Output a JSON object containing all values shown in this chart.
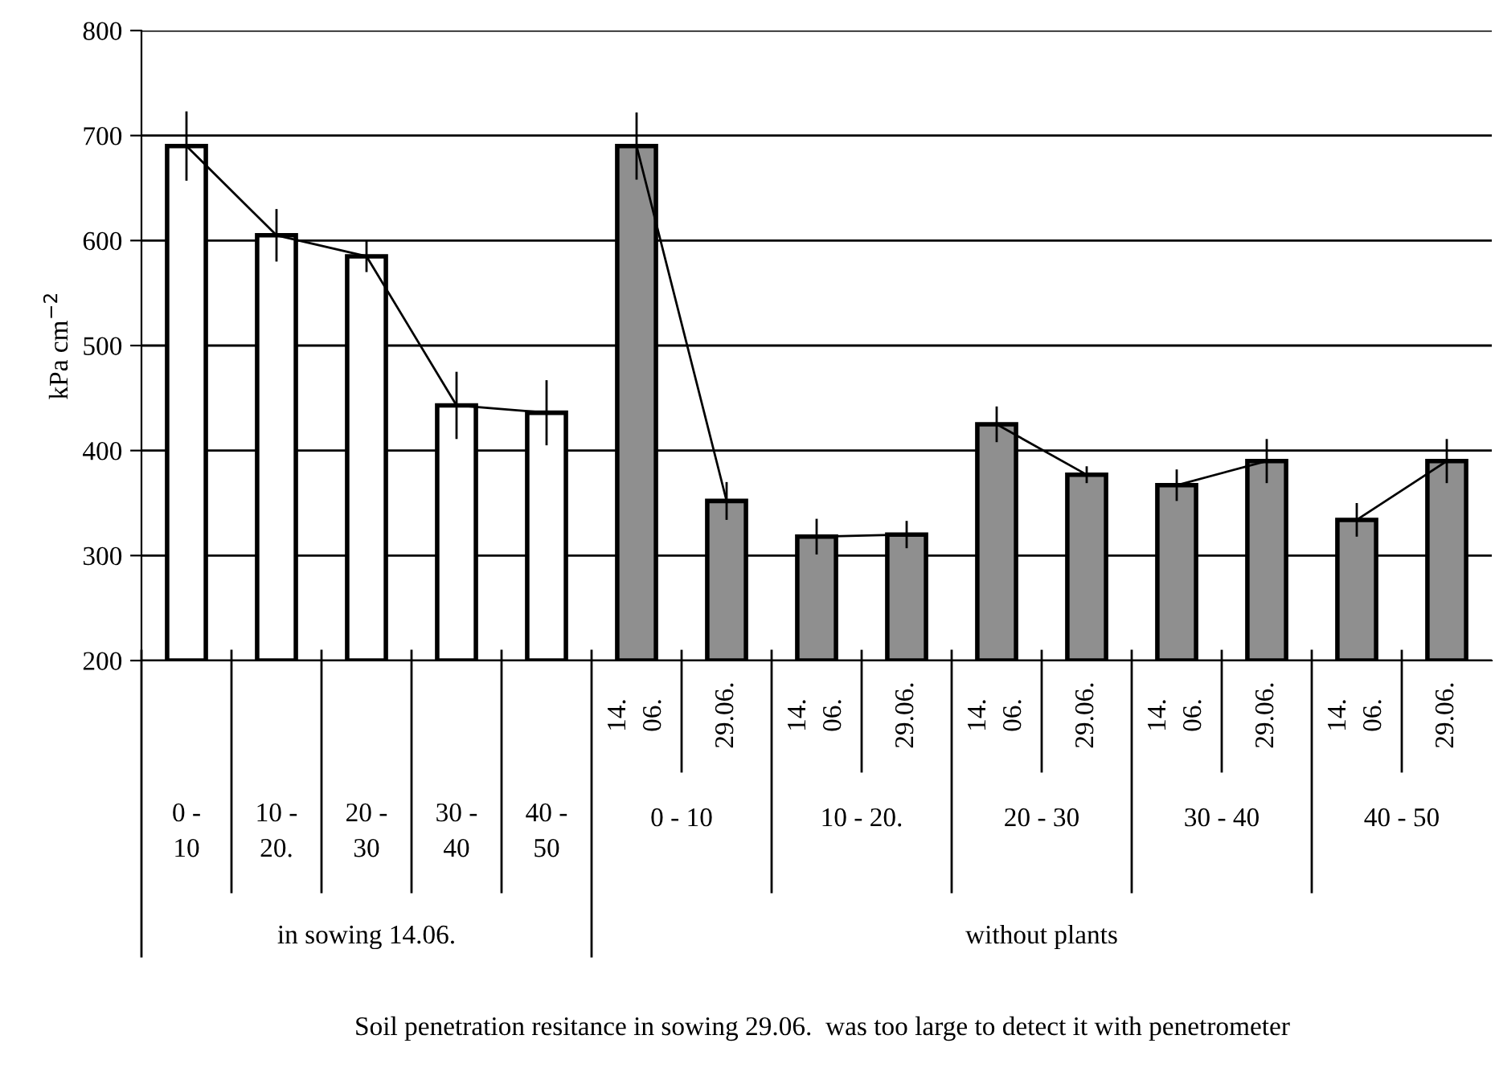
{
  "chart_data": [
    {
      "type": "bar",
      "ylabel": "kPa cm$^{−2}$",
      "categories": [
        "0 - 10",
        "10 - 20.",
        "20 - 30",
        "30 - 40",
        "40 - 50"
      ],
      "series": [
        {
          "type": "bar",
          "values": [
            690,
            605,
            585,
            443,
            436
          ],
          "errors": [
            33,
            25,
            15,
            32,
            31
          ],
          "color": "#ffffff"
        },
        {
          "type": "line",
          "color": "#000000",
          "values": [
            690,
            605,
            585,
            443,
            436
          ]
        }
      ],
      "ylim": [
        200,
        800
      ],
      "yticks": [
        200,
        300,
        400,
        500,
        600,
        700,
        800
      ],
      "grid": "y",
      "marker": "none",
      "line_style": "solid",
      "annotations": [
        "in sowing 14.06."
      ]
    },
    {
      "type": "bar",
      "categories": [
        "14. 06.",
        "29.06.",
        "14. 06.",
        "29.06.",
        "14. 06.",
        "29.06.",
        "14. 06.",
        "29.06.",
        "14. 06.",
        "29.06."
      ],
      "series": [
        {
          "type": "bar",
          "values": [
            690,
            352,
            318,
            320,
            425,
            377,
            367,
            390,
            334,
            390
          ],
          "errors": [
            32,
            18,
            17,
            13,
            17,
            8,
            15,
            21,
            16,
            21
          ],
          "color": "#8f8f8f"
        },
        {
          "type": "line",
          "color": "#000000",
          "values": [
            690,
            352,
            null,
            null,
            null,
            null,
            null,
            null,
            null,
            null
          ]
        },
        {
          "type": "line",
          "color": "#000000",
          "values": [
            null,
            null,
            318,
            320,
            null,
            null,
            null,
            null,
            null,
            null
          ]
        },
        {
          "type": "line",
          "color": "#000000",
          "values": [
            null,
            null,
            null,
            null,
            425,
            377,
            null,
            null,
            null,
            null
          ]
        },
        {
          "type": "line",
          "color": "#000000",
          "values": [
            null,
            null,
            null,
            null,
            null,
            null,
            367,
            390,
            null,
            null
          ]
        },
        {
          "type": "line",
          "color": "#000000",
          "values": [
            null,
            null,
            null,
            null,
            null,
            null,
            null,
            null,
            334,
            390
          ]
        }
      ],
      "ylim": [
        200,
        800
      ],
      "yticks": [
        200,
        300,
        400,
        500,
        600,
        700,
        800
      ],
      "grid": "y",
      "marker": "none",
      "line_style": "solid",
      "tick_labels": "x",
      "annotations": [
        "0 - 10",
        "10 - 20.",
        "20 - 30",
        "30 - 40",
        "40 - 50",
        "without plants",
        "Soil penetration resitance in sowing 29.06.  was too large to detect it with penetrometer"
      ]
    }
  ]
}
